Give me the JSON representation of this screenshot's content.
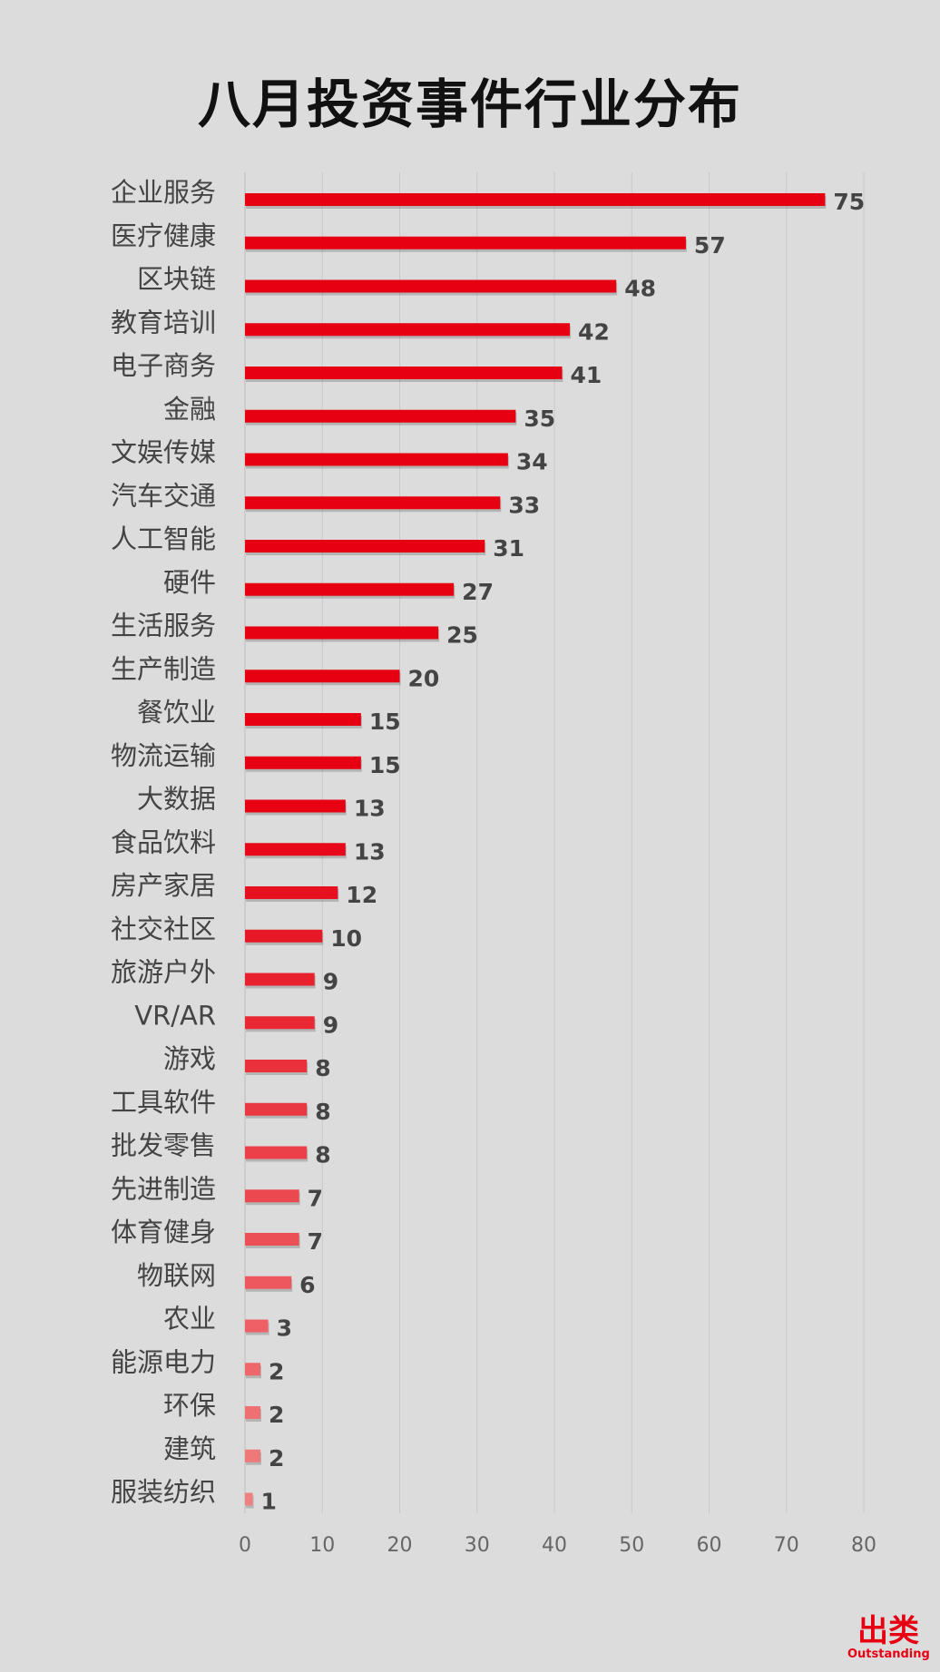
{
  "chart_data": {
    "type": "bar",
    "orientation": "horizontal",
    "title": "八月投资事件行业分布",
    "categories": [
      "企业服务",
      "医疗健康",
      "区块链",
      "教育培训",
      "电子商务",
      "金融",
      "文娱传媒",
      "汽车交通",
      "人工智能",
      "硬件",
      "生活服务",
      "生产制造",
      "餐饮业",
      "物流运输",
      "大数据",
      "食品饮料",
      "房产家居",
      "社交社区",
      "旅游户外",
      "VR/AR",
      "游戏",
      "工具软件",
      "批发零售",
      "先进制造",
      "体育健身",
      "物联网",
      "农业",
      "能源电力",
      "环保",
      "建筑",
      "服装纺织"
    ],
    "values": [
      75,
      57,
      48,
      42,
      41,
      35,
      34,
      33,
      31,
      27,
      25,
      20,
      15,
      15,
      13,
      13,
      12,
      10,
      9,
      9,
      8,
      8,
      8,
      7,
      7,
      6,
      3,
      2,
      2,
      2,
      1
    ],
    "xlim": [
      0,
      80
    ],
    "xticks": [
      0,
      10,
      20,
      30,
      40,
      50,
      60,
      70,
      80
    ],
    "grid": true,
    "legend": "none",
    "colors": {
      "bar_strong": "#e60012",
      "bar_light": "#f08080"
    }
  },
  "brand": {
    "main": "出类",
    "sub": "Outstanding"
  }
}
